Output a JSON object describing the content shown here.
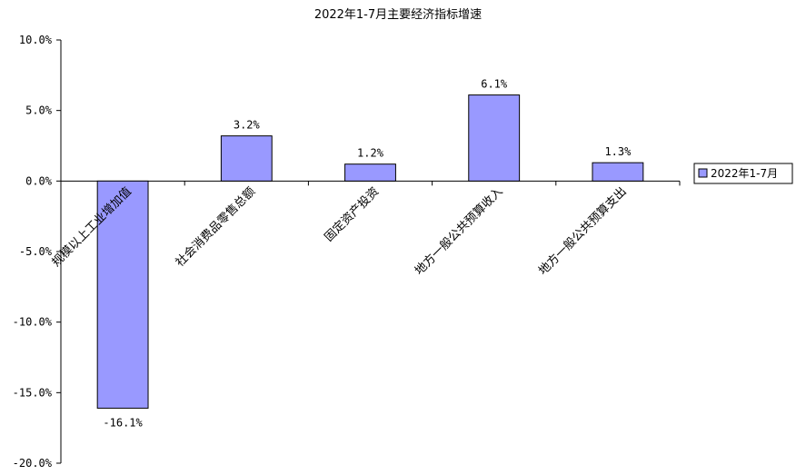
{
  "chart_data": {
    "type": "bar",
    "title": "2022年1-7月主要经济指标增速",
    "categories": [
      "规模以上工业增加值",
      "社会消费品零售总额",
      "固定资产投资",
      "地方一般公共预算收入",
      "地方一般公共预算支出"
    ],
    "series": [
      {
        "name": "2022年1-7月",
        "values": [
          -16.1,
          3.2,
          1.2,
          6.1,
          1.3
        ],
        "labels": [
          "-16.1%",
          "3.2%",
          "1.2%",
          "6.1%",
          "1.3%"
        ],
        "color": "#9999ff"
      }
    ],
    "ylim": [
      -20,
      10
    ],
    "yticks": [
      10,
      5,
      0,
      -5,
      -10,
      -15,
      -20
    ],
    "ytick_labels": [
      "10.0%",
      "5.0%",
      "0.0%",
      "-5.0%",
      "-10.0%",
      "-15.0%",
      "-20.0%"
    ],
    "xlabel": "",
    "ylabel": "",
    "grid": false,
    "legend": "right"
  }
}
